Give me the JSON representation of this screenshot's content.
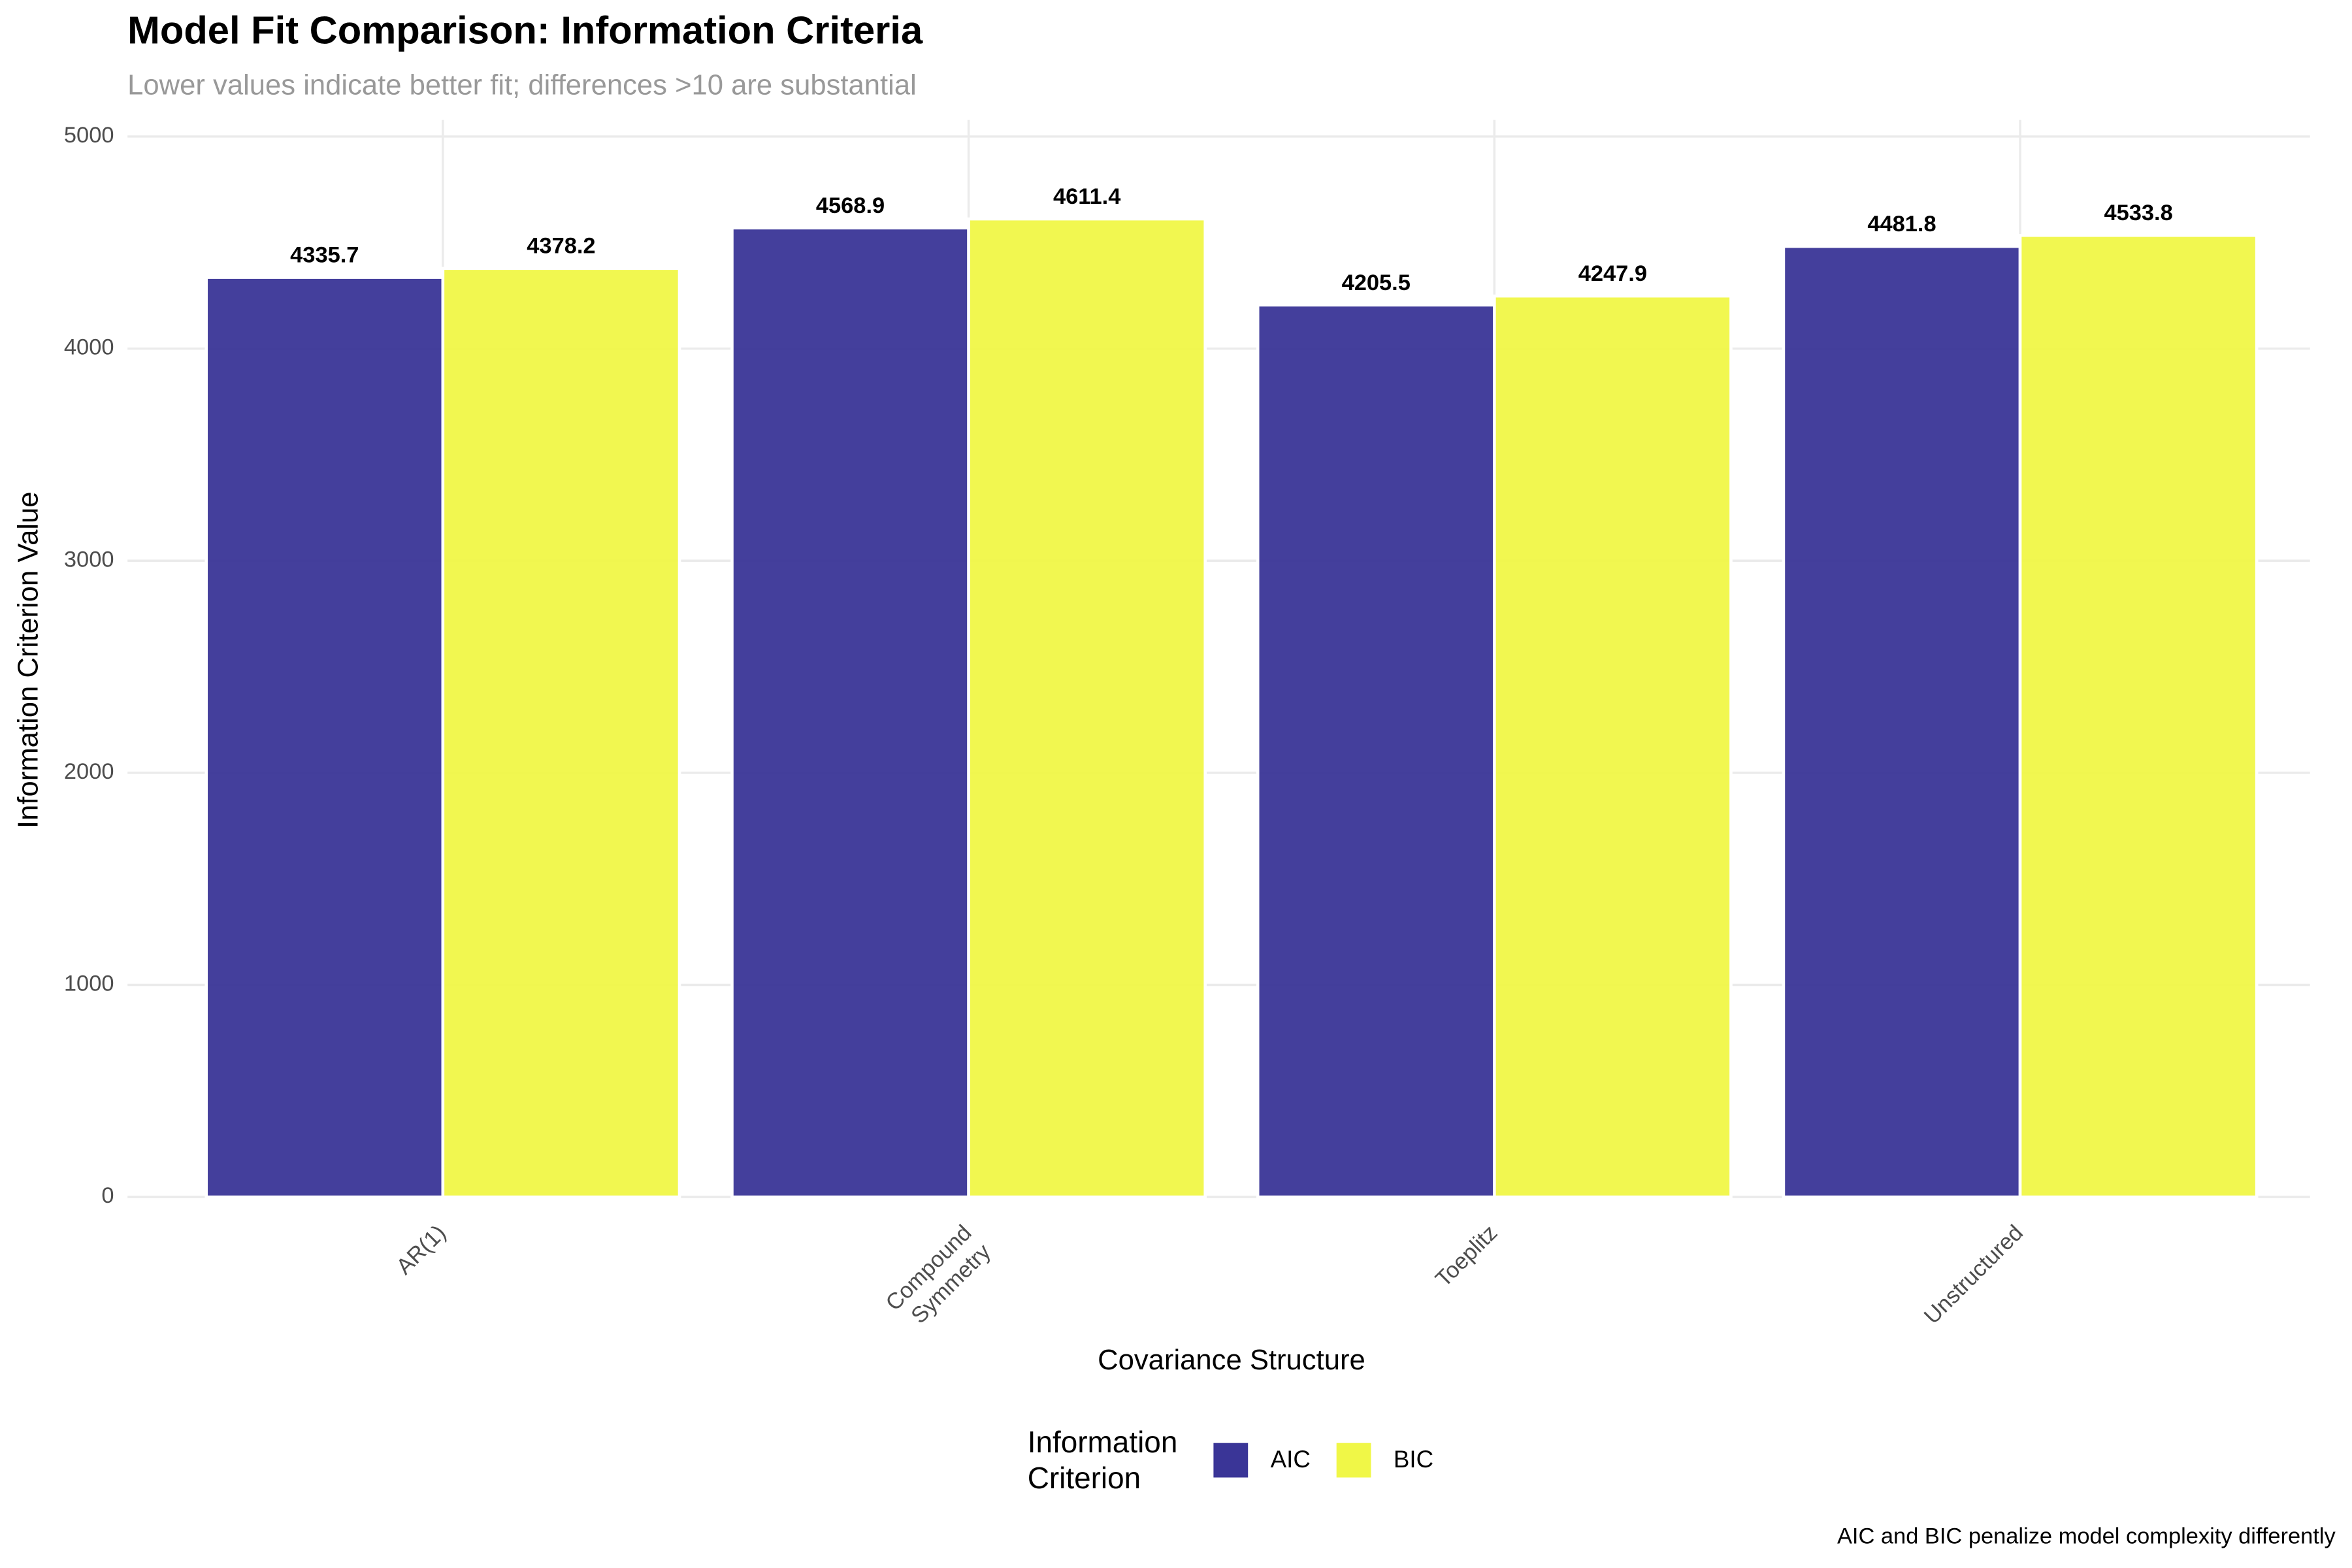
{
  "chart_data": {
    "type": "bar",
    "title": "Model Fit Comparison: Information Criteria",
    "subtitle": "Lower values indicate better fit; differences >10 are substantial",
    "x_label": "Covariance Structure",
    "y_label": "Information Criterion Value",
    "caption": "AIC and BIC penalize model complexity differently",
    "legend_title": "Information\nCriterion",
    "legend_position": "bottom",
    "categories": [
      "AR(1)",
      "Compound\nSymmetry",
      "Toeplitz",
      "Unstructured"
    ],
    "series": [
      {
        "name": "AIC",
        "color": "#3a3597",
        "values": [
          4335.7,
          4568.9,
          4205.5,
          4481.8
        ]
      },
      {
        "name": "BIC",
        "color": "#f0f747",
        "values": [
          4378.2,
          4611.4,
          4247.9,
          4533.8
        ]
      }
    ],
    "ylim": [
      0,
      5000
    ],
    "yticks": [
      0,
      1000,
      2000,
      3000,
      4000,
      5000
    ],
    "grid": true
  }
}
